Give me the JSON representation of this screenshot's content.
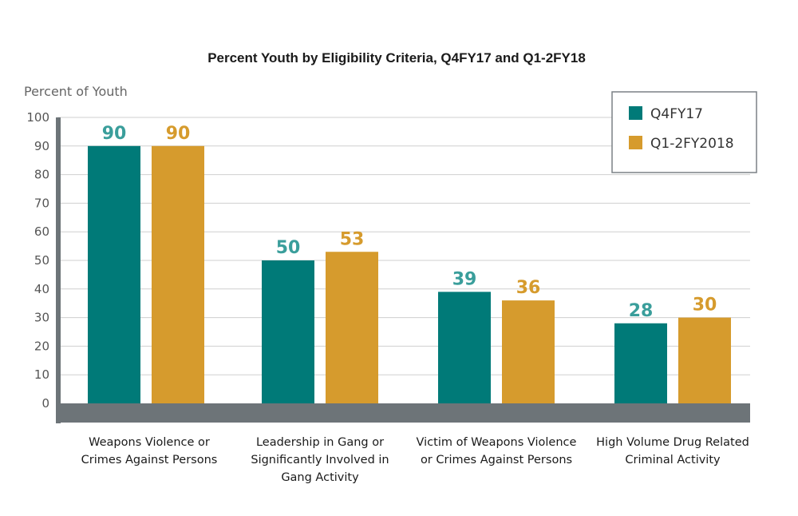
{
  "chart_data": {
    "type": "bar",
    "title": "Percent Youth by Eligibility Criteria,  Q4FY17 and Q1-2FY18",
    "ylabel": "Percent of Youth",
    "ylim": [
      0,
      100
    ],
    "yticks": [
      0,
      10,
      20,
      30,
      40,
      50,
      60,
      70,
      80,
      90,
      100
    ],
    "grid": true,
    "legend": "top-right",
    "categories": [
      [
        "Weapons Violence or",
        "Crimes Against Persons"
      ],
      [
        "Leadership in Gang or",
        "Significantly Involved in",
        "Gang Activity"
      ],
      [
        "Victim of Weapons Violence",
        "or Crimes Against Persons"
      ],
      [
        "High Volume Drug Related",
        "Criminal Activity"
      ]
    ],
    "series": [
      {
        "name": "Q4FY17",
        "color": "#007a78",
        "label_color": "#3a9e9b",
        "values": [
          90,
          50,
          39,
          28
        ]
      },
      {
        "name": "Q1-2FY2018",
        "color": "#d69b2d",
        "label_color": "#d69b2d",
        "values": [
          90,
          53,
          36,
          30
        ]
      }
    ]
  }
}
